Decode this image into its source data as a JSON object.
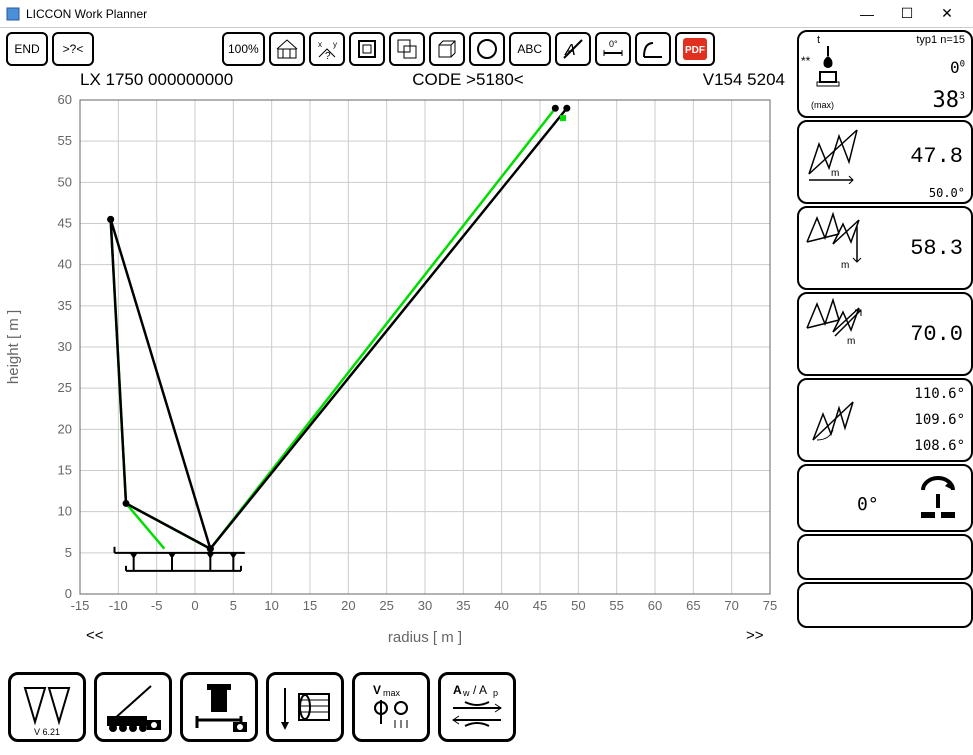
{
  "window": {
    "title": "LICCON Work Planner"
  },
  "toolbar": {
    "end": "END",
    "help": ">?<",
    "zoom": "100%",
    "abc": "ABC",
    "pdf": "PDF"
  },
  "header": {
    "left": "LX 1750  000000000",
    "center": "CODE >5180<",
    "right": "V154 5204"
  },
  "chart": {
    "xlabel": "radius [ m ]",
    "ylabel": "height [ m ]",
    "xlim": [
      -15,
      75
    ],
    "ylim": [
      0,
      60
    ],
    "xtick_step": 5,
    "ytick_step": 5,
    "xticks": [
      -15,
      -10,
      -5,
      0,
      5,
      10,
      15,
      20,
      25,
      30,
      35,
      40,
      45,
      50,
      55,
      60,
      65,
      70,
      75
    ],
    "yticks": [
      0,
      5,
      10,
      15,
      20,
      25,
      30,
      35,
      40,
      45,
      50,
      55,
      60
    ],
    "grid_color": "#cccccc",
    "axis_color": "#666666",
    "nav_prev": "<<",
    "nav_next": ">>",
    "green_path": [
      [
        -11,
        45.5
      ],
      [
        -9,
        11
      ],
      [
        2,
        5.5
      ],
      [
        47,
        59
      ]
    ],
    "green_ext": [
      [
        -9,
        11
      ],
      [
        -4,
        5.5
      ]
    ],
    "black_path": [
      [
        -11,
        45.5
      ],
      [
        2,
        5.5
      ],
      [
        48.5,
        59
      ]
    ],
    "black_ext": [
      [
        -11,
        45.5
      ],
      [
        -9,
        11
      ],
      [
        2,
        5.5
      ]
    ],
    "hook_point": [
      48,
      57.8
    ],
    "dot_color": "#000000",
    "green": "#00dd00",
    "black": "#000000",
    "line_width": 2.5,
    "base_rect_y": 5,
    "base_x1": -10.5,
    "base_x2": 6.5,
    "supports": [
      -8,
      -3,
      2,
      5
    ]
  },
  "side": {
    "top": {
      "t": "t",
      "typ": "typ1  n=15",
      "stars": "**",
      "zero": "0",
      "max": "(max)",
      "val": "38",
      "sup0": "0",
      "sup3": "3"
    },
    "p1": {
      "val": "47.8",
      "unit": "m",
      "ang": "50.0°"
    },
    "p2": {
      "val": "58.3",
      "unit": "m"
    },
    "p3": {
      "val": "70.0",
      "unit": "m"
    },
    "p4": {
      "a1": "110.6°",
      "a2": "109.6°",
      "a3": "108.6°"
    },
    "p5": {
      "val": "0°"
    }
  },
  "footer": {
    "version": "V 6.21",
    "vmax": "Vmax",
    "awap": "Aw / Ap"
  }
}
